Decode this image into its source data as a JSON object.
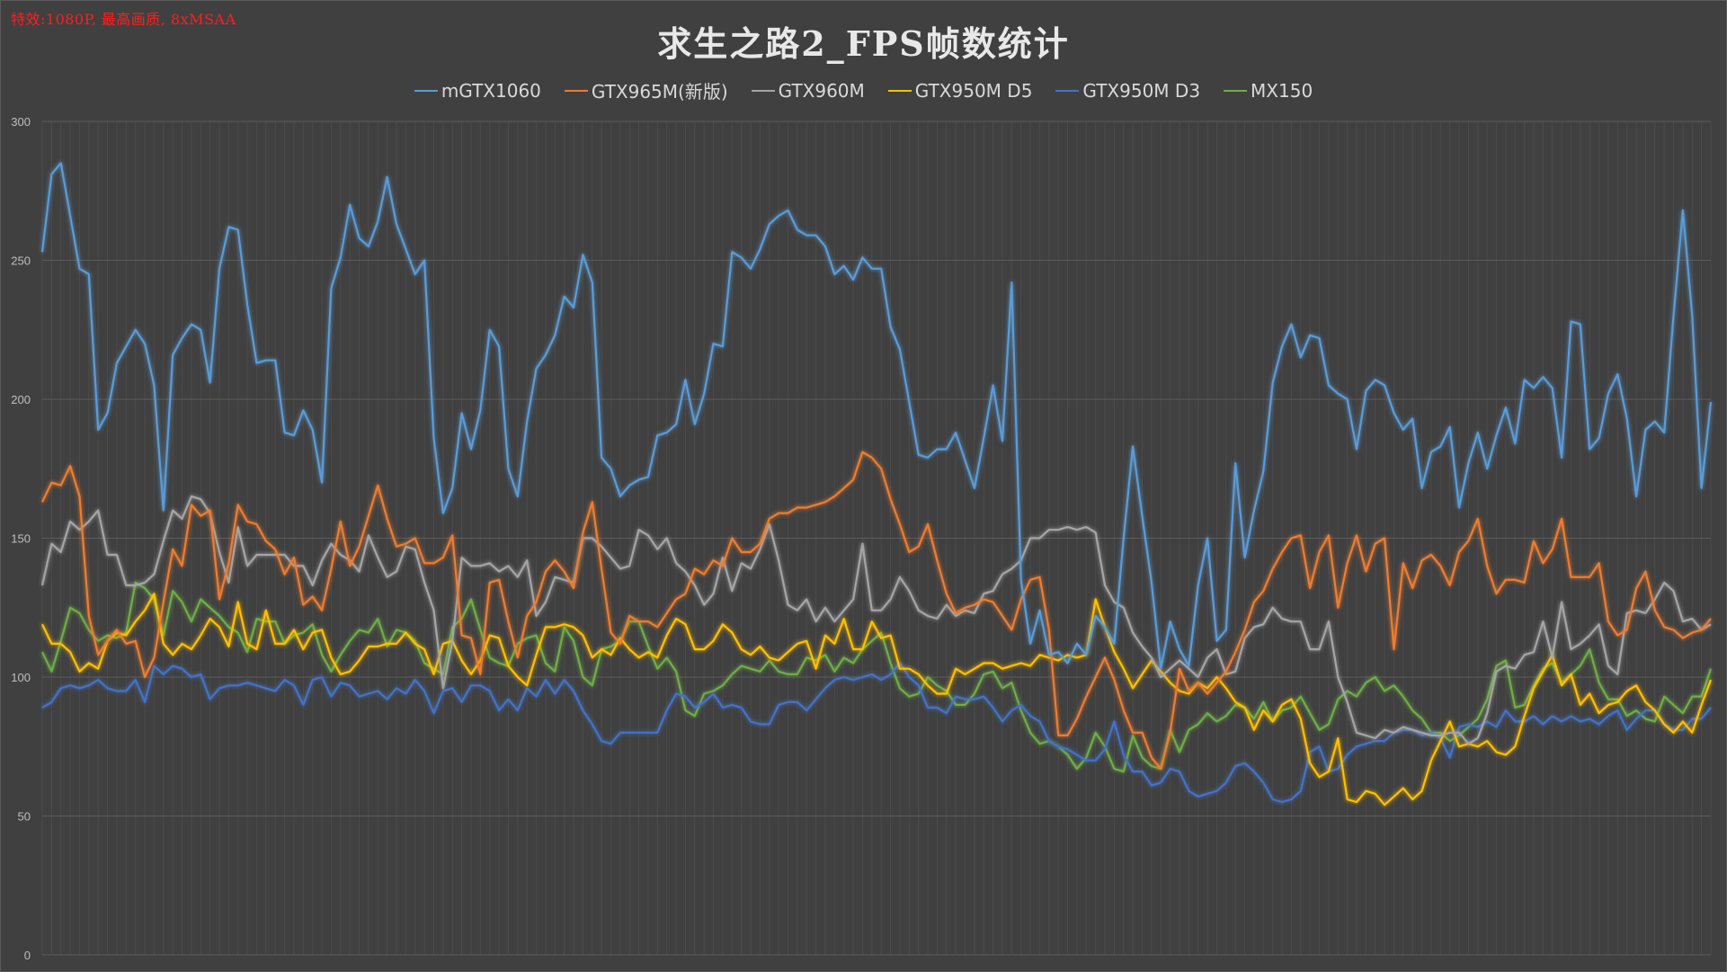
{
  "note": "特效:1080P, 最高画质, 8xMSAA",
  "chart_data": {
    "type": "line",
    "title": "求生之路2_FPS帧数统计",
    "ylim": [
      0,
      300
    ],
    "yticks": [
      0,
      50,
      100,
      150,
      200,
      250,
      300
    ],
    "grid": true,
    "legend_position": "top",
    "series": [
      {
        "name": "mGTX1060",
        "color": "#5b9bd5",
        "values": [
          253,
          281,
          285,
          266,
          247,
          245,
          189,
          195,
          213,
          219,
          225,
          220,
          205,
          160,
          216,
          222,
          227,
          225,
          206,
          247,
          262,
          261,
          234,
          213,
          214,
          214,
          188,
          187,
          196,
          189,
          170,
          240,
          251,
          270,
          258,
          255,
          264,
          280,
          263,
          254,
          245,
          250,
          186,
          159,
          168,
          195,
          182,
          196,
          225,
          219,
          175,
          165,
          192,
          211,
          216,
          223,
          237,
          233,
          252,
          242,
          179,
          175,
          165,
          169,
          171,
          172,
          187,
          188,
          191,
          207,
          191,
          202,
          220,
          219,
          253,
          251,
          247,
          254,
          263,
          266,
          268,
          261,
          259,
          259,
          255,
          245,
          248,
          243,
          251,
          247,
          247,
          226,
          218,
          199,
          180,
          179,
          182,
          182,
          188,
          178,
          168,
          186,
          205,
          185,
          242,
          135,
          112,
          124,
          108,
          109,
          105,
          112,
          108,
          122,
          118,
          112,
          150,
          183,
          158,
          134,
          103,
          120,
          110,
          104,
          133,
          150,
          113,
          117,
          177,
          143,
          160,
          174,
          206,
          219,
          227,
          215,
          223,
          222,
          205,
          202,
          200,
          182,
          203,
          207,
          205,
          195,
          189,
          193,
          168,
          181,
          183,
          190,
          161,
          177,
          188,
          175,
          187,
          197,
          184,
          207,
          204,
          208,
          204,
          179,
          228,
          227,
          182,
          186,
          202,
          209,
          193,
          165,
          189,
          192,
          188,
          230,
          268,
          230,
          168,
          199
        ]
      },
      {
        "name": "GTX965M(新版)",
        "color": "#ed7d31",
        "values": [
          163,
          170,
          169,
          176,
          165,
          122,
          108,
          113,
          117,
          112,
          113,
          100,
          107,
          127,
          146,
          140,
          162,
          158,
          160,
          128,
          141,
          162,
          156,
          155,
          149,
          146,
          137,
          143,
          126,
          129,
          124,
          139,
          156,
          140,
          147,
          158,
          169,
          157,
          147,
          148,
          150,
          141,
          141,
          143,
          151,
          115,
          114,
          101,
          134,
          135,
          120,
          107,
          122,
          127,
          138,
          142,
          138,
          132,
          152,
          163,
          139,
          116,
          112,
          122,
          120,
          120,
          118,
          123,
          128,
          130,
          139,
          137,
          142,
          140,
          150,
          145,
          145,
          148,
          157,
          159,
          159,
          161,
          161,
          162,
          163,
          165,
          168,
          171,
          181,
          179,
          175,
          164,
          155,
          145,
          147,
          155,
          142,
          130,
          123,
          125,
          126,
          128,
          127,
          122,
          117,
          128,
          135,
          136,
          117,
          79,
          79,
          85,
          93,
          100,
          107,
          99,
          88,
          80,
          80,
          71,
          67,
          80,
          103,
          95,
          98,
          94,
          98,
          102,
          109,
          117,
          127,
          131,
          139,
          145,
          150,
          151,
          132,
          145,
          151,
          125,
          141,
          151,
          138,
          148,
          150,
          110,
          141,
          132,
          142,
          144,
          140,
          133,
          145,
          149,
          157,
          140,
          130,
          135,
          135,
          134,
          149,
          141,
          146,
          157,
          136,
          136,
          136,
          141,
          120,
          115,
          117,
          132,
          138,
          124,
          118,
          117,
          114,
          116,
          117,
          121
        ]
      },
      {
        "name": "GTX960M",
        "color": "#a5a5a5",
        "values": [
          133,
          148,
          145,
          156,
          153,
          156,
          160,
          144,
          144,
          133,
          133,
          134,
          137,
          149,
          160,
          157,
          165,
          164,
          159,
          145,
          134,
          154,
          140,
          144,
          144,
          144,
          144,
          140,
          140,
          133,
          142,
          148,
          144,
          142,
          138,
          151,
          143,
          136,
          138,
          147,
          146,
          134,
          124,
          96,
          113,
          143,
          140,
          140,
          141,
          138,
          140,
          136,
          142,
          122,
          127,
          136,
          135,
          134,
          150,
          150,
          147,
          143,
          139,
          140,
          153,
          151,
          146,
          150,
          141,
          138,
          133,
          126,
          130,
          143,
          131,
          141,
          139,
          146,
          155,
          142,
          126,
          124,
          128,
          120,
          125,
          120,
          124,
          128,
          148,
          124,
          124,
          128,
          136,
          131,
          124,
          122,
          121,
          126,
          122,
          124,
          123,
          130,
          131,
          137,
          139,
          142,
          150,
          150,
          153,
          153,
          154,
          153,
          154,
          152,
          133,
          127,
          125,
          116,
          111,
          107,
          100,
          103,
          106,
          103,
          100,
          107,
          110,
          101,
          102,
          114,
          118,
          119,
          125,
          121,
          120,
          120,
          110,
          110,
          120,
          100,
          91,
          80,
          79,
          78,
          81,
          80,
          82,
          81,
          80,
          79,
          79,
          80,
          80,
          76,
          78,
          87,
          102,
          104,
          103,
          108,
          109,
          120,
          107,
          127,
          110,
          112,
          115,
          119,
          104,
          101,
          123,
          124,
          123,
          128,
          134,
          131,
          120,
          121,
          117,
          119
        ]
      },
      {
        "name": "GTX950M D5",
        "color": "#ffc000",
        "values": [
          119,
          112,
          112,
          109,
          102,
          105,
          103,
          113,
          116,
          115,
          120,
          124,
          130,
          112,
          108,
          112,
          110,
          115,
          121,
          118,
          111,
          127,
          112,
          110,
          124,
          112,
          112,
          117,
          110,
          116,
          117,
          107,
          101,
          102,
          106,
          111,
          111,
          112,
          112,
          116,
          112,
          110,
          101,
          112,
          113,
          106,
          101,
          106,
          115,
          114,
          104,
          100,
          97,
          108,
          118,
          118,
          119,
          118,
          115,
          107,
          110,
          108,
          114,
          110,
          107,
          109,
          107,
          115,
          121,
          119,
          110,
          110,
          113,
          119,
          116,
          110,
          108,
          111,
          107,
          106,
          109,
          112,
          113,
          103,
          115,
          112,
          121,
          110,
          110,
          120,
          114,
          115,
          103,
          103,
          101,
          97,
          94,
          94,
          103,
          101,
          103,
          105,
          105,
          103,
          104,
          105,
          104,
          108,
          107,
          106,
          108,
          107,
          108,
          128,
          118,
          109,
          103,
          96,
          101,
          106,
          102,
          98,
          95,
          94,
          98,
          96,
          100,
          96,
          91,
          89,
          81,
          88,
          84,
          90,
          92,
          85,
          69,
          64,
          66,
          78,
          56,
          55,
          59,
          58,
          54,
          57,
          60,
          56,
          59,
          70,
          77,
          84,
          75,
          76,
          75,
          77,
          73,
          72,
          75,
          86,
          96,
          102,
          108,
          97,
          101,
          90,
          94,
          87,
          90,
          91,
          95,
          97,
          91,
          88,
          83,
          80,
          84,
          80,
          90,
          99
        ]
      },
      {
        "name": "GTX950M D3",
        "color": "#4472c4",
        "values": [
          89,
          91,
          96,
          97,
          96,
          97,
          99,
          96,
          95,
          95,
          99,
          91,
          104,
          101,
          104,
          103,
          100,
          101,
          92,
          96,
          97,
          97,
          98,
          97,
          96,
          95,
          99,
          97,
          90,
          99,
          100,
          93,
          98,
          97,
          93,
          94,
          95,
          92,
          96,
          94,
          99,
          95,
          87,
          95,
          96,
          91,
          97,
          97,
          95,
          88,
          92,
          88,
          96,
          93,
          99,
          94,
          99,
          95,
          88,
          83,
          77,
          76,
          80,
          80,
          80,
          80,
          80,
          88,
          94,
          93,
          89,
          91,
          94,
          89,
          90,
          89,
          84,
          83,
          83,
          90,
          91,
          91,
          88,
          92,
          96,
          99,
          100,
          99,
          100,
          101,
          99,
          101,
          105,
          100,
          97,
          89,
          89,
          87,
          93,
          92,
          92,
          93,
          89,
          84,
          88,
          90,
          86,
          84,
          77,
          75,
          74,
          72,
          70,
          70,
          74,
          84,
          72,
          66,
          66,
          61,
          62,
          67,
          66,
          59,
          57,
          58,
          59,
          62,
          68,
          69,
          66,
          62,
          56,
          55,
          56,
          59,
          73,
          75,
          66,
          67,
          72,
          75,
          76,
          77,
          77,
          80,
          81,
          81,
          79,
          80,
          78,
          71,
          82,
          83,
          82,
          84,
          82,
          88,
          84,
          84,
          86,
          83,
          86,
          84,
          86,
          84,
          85,
          83,
          86,
          88,
          81,
          85,
          88,
          88,
          83,
          81,
          81,
          85,
          85,
          89
        ]
      },
      {
        "name": "MX150",
        "color": "#70ad47",
        "values": [
          109,
          102,
          113,
          125,
          123,
          117,
          113,
          115,
          114,
          116,
          134,
          132,
          128,
          115,
          131,
          127,
          120,
          128,
          125,
          122,
          118,
          116,
          109,
          121,
          120,
          120,
          112,
          115,
          116,
          119,
          108,
          102,
          108,
          113,
          117,
          116,
          121,
          111,
          117,
          116,
          113,
          105,
          103,
          101,
          118,
          121,
          128,
          117,
          107,
          105,
          104,
          112,
          114,
          115,
          105,
          102,
          118,
          113,
          100,
          97,
          110,
          111,
          113,
          120,
          120,
          111,
          103,
          107,
          102,
          88,
          86,
          94,
          95,
          97,
          101,
          104,
          103,
          102,
          106,
          102,
          101,
          101,
          107,
          106,
          108,
          102,
          107,
          105,
          110,
          113,
          116,
          105,
          96,
          93,
          94,
          100,
          97,
          95,
          90,
          90,
          94,
          101,
          102,
          96,
          98,
          88,
          80,
          76,
          77,
          75,
          72,
          67,
          71,
          80,
          75,
          67,
          66,
          79,
          71,
          68,
          67,
          81,
          73,
          81,
          83,
          87,
          84,
          86,
          90,
          89,
          85,
          91,
          84,
          88,
          89,
          93,
          87,
          81,
          83,
          92,
          95,
          93,
          98,
          100,
          95,
          97,
          93,
          88,
          85,
          80,
          80,
          77,
          79,
          82,
          85,
          92,
          104,
          106,
          89,
          90,
          97,
          103,
          105,
          98,
          101,
          104,
          110,
          98,
          92,
          92,
          86,
          88,
          85,
          84,
          93,
          90,
          87,
          93,
          93,
          103
        ]
      }
    ]
  }
}
